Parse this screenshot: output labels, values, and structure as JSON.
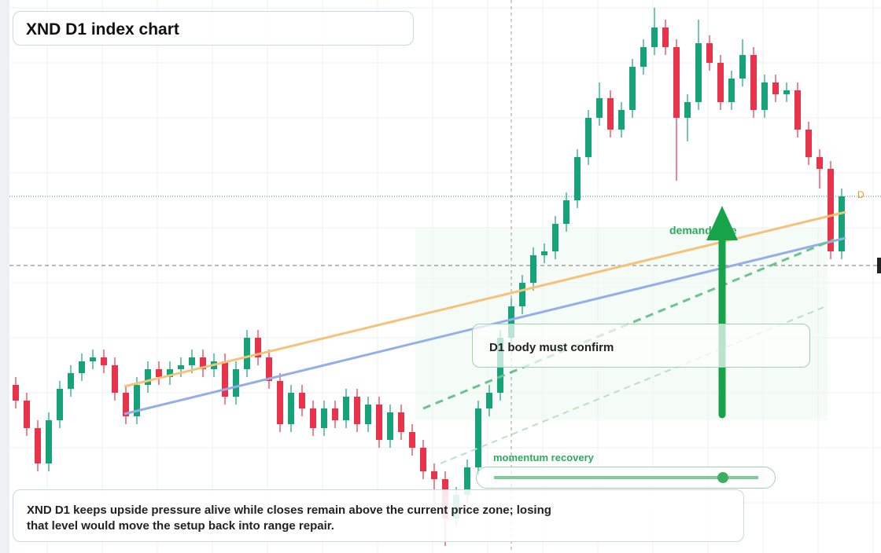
{
  "chart_data": {
    "type": "candlestick",
    "title": "XND D1 index chart",
    "ylim": [
      296,
      1000
    ],
    "up_color": "#17a37a",
    "down_color": "#e8334a",
    "open": [
      510,
      490,
      455,
      410,
      465,
      505,
      525,
      540,
      545,
      535,
      500,
      470,
      510,
      530,
      520,
      530,
      535,
      545,
      530,
      540,
      495,
      530,
      570,
      545,
      515,
      460,
      500,
      480,
      455,
      480,
      465,
      495,
      460,
      485,
      440,
      475,
      450,
      430,
      400,
      390,
      340,
      370,
      405,
      480,
      500,
      570,
      610,
      640,
      675,
      680,
      715,
      745,
      800,
      850,
      875,
      835,
      860,
      915,
      940,
      965,
      940,
      850,
      870,
      945,
      920,
      870,
      900,
      930,
      860,
      895,
      880,
      885,
      835,
      800,
      785,
      680
    ],
    "high": [
      520,
      500,
      465,
      475,
      515,
      535,
      550,
      555,
      555,
      545,
      510,
      520,
      540,
      540,
      540,
      545,
      555,
      555,
      550,
      550,
      540,
      580,
      580,
      555,
      525,
      510,
      510,
      490,
      490,
      490,
      505,
      505,
      495,
      495,
      485,
      485,
      460,
      440,
      410,
      400,
      380,
      415,
      490,
      510,
      580,
      620,
      650,
      685,
      690,
      725,
      755,
      810,
      860,
      895,
      885,
      870,
      925,
      950,
      990,
      975,
      950,
      880,
      975,
      955,
      930,
      910,
      950,
      940,
      905,
      905,
      895,
      895,
      845,
      810,
      795,
      760
    ],
    "low": [
      480,
      445,
      400,
      400,
      455,
      495,
      515,
      530,
      525,
      490,
      460,
      460,
      500,
      510,
      510,
      520,
      525,
      520,
      520,
      485,
      485,
      520,
      535,
      505,
      450,
      450,
      470,
      445,
      445,
      455,
      455,
      450,
      450,
      430,
      430,
      440,
      420,
      390,
      360,
      305,
      330,
      360,
      395,
      470,
      490,
      560,
      600,
      630,
      665,
      670,
      705,
      735,
      790,
      840,
      825,
      825,
      850,
      905,
      930,
      930,
      770,
      820,
      860,
      910,
      860,
      860,
      890,
      850,
      850,
      870,
      870,
      825,
      790,
      760,
      670,
      670
    ],
    "close": [
      490,
      455,
      410,
      465,
      505,
      525,
      540,
      545,
      535,
      500,
      470,
      510,
      530,
      520,
      530,
      535,
      545,
      530,
      540,
      495,
      530,
      570,
      545,
      515,
      460,
      500,
      480,
      455,
      480,
      465,
      495,
      460,
      485,
      440,
      475,
      450,
      430,
      400,
      390,
      340,
      370,
      405,
      480,
      500,
      570,
      610,
      640,
      675,
      680,
      715,
      745,
      800,
      850,
      875,
      835,
      860,
      915,
      940,
      965,
      940,
      850,
      870,
      945,
      920,
      870,
      900,
      930,
      860,
      895,
      880,
      885,
      835,
      800,
      785,
      680,
      750
    ],
    "last_label": "D",
    "zone_label": "demand side",
    "confirm_label": "D1 body must confirm",
    "momentum_label": "momentum recovery",
    "note": "XND D1 keeps upside pressure alive while closes remain above the current price zone; losing that level would move the setup back into range repair."
  }
}
